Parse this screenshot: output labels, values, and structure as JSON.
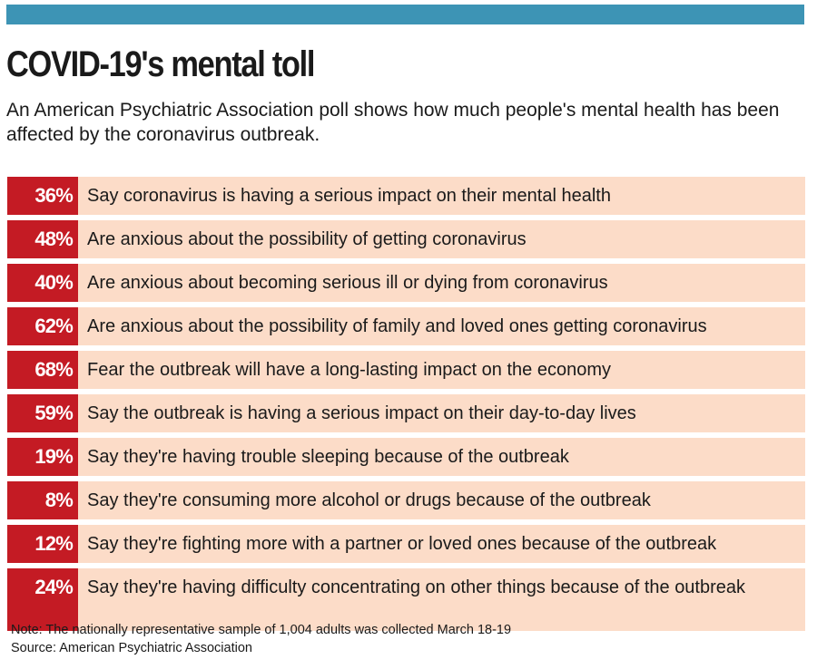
{
  "header": {
    "accent_color": "#3d94b5",
    "title": "COVID-19's mental toll",
    "subtitle": "An American Psychiatric Association poll shows how much people's mental health has been affected by the coronavirus outbreak."
  },
  "chart_data": {
    "type": "table",
    "title": "COVID-19's mental toll",
    "subtitle": "An American Psychiatric Association poll shows how much people's mental health has been affected by the coronavirus outbreak.",
    "colors": {
      "percent_cell": "#c41b24",
      "label_cell": "#fcdcc8"
    },
    "rows": [
      {
        "percent": "36%",
        "value": 36,
        "label": "Say coronavirus is having a serious impact on their mental health"
      },
      {
        "percent": "48%",
        "value": 48,
        "label": "Are anxious about the possibility of getting coronavirus"
      },
      {
        "percent": "40%",
        "value": 40,
        "label": "Are anxious about becoming serious ill or dying from coronavirus"
      },
      {
        "percent": "62%",
        "value": 62,
        "label": "Are anxious about the possibility of family and loved ones getting coronavirus"
      },
      {
        "percent": "68%",
        "value": 68,
        "label": "Fear the outbreak will have a long-lasting impact on the economy"
      },
      {
        "percent": "59%",
        "value": 59,
        "label": "Say the outbreak is having a serious impact on their day-to-day lives"
      },
      {
        "percent": "19%",
        "value": 19,
        "label": "Say they're having trouble sleeping because of the outbreak"
      },
      {
        "percent": "8%",
        "value": 8,
        "label": "Say they're consuming more alcohol or drugs because of the outbreak"
      },
      {
        "percent": "12%",
        "value": 12,
        "label": "Say they're fighting more with a partner or loved ones because of the outbreak"
      },
      {
        "percent": "24%",
        "value": 24,
        "label": "Say they're having difficulty concentrating on other things because of the outbreak"
      }
    ]
  },
  "footer": {
    "note": "Note: The nationally representative sample of 1,004 adults was collected March 18-19",
    "source": "Source: American Psychiatric Association"
  }
}
